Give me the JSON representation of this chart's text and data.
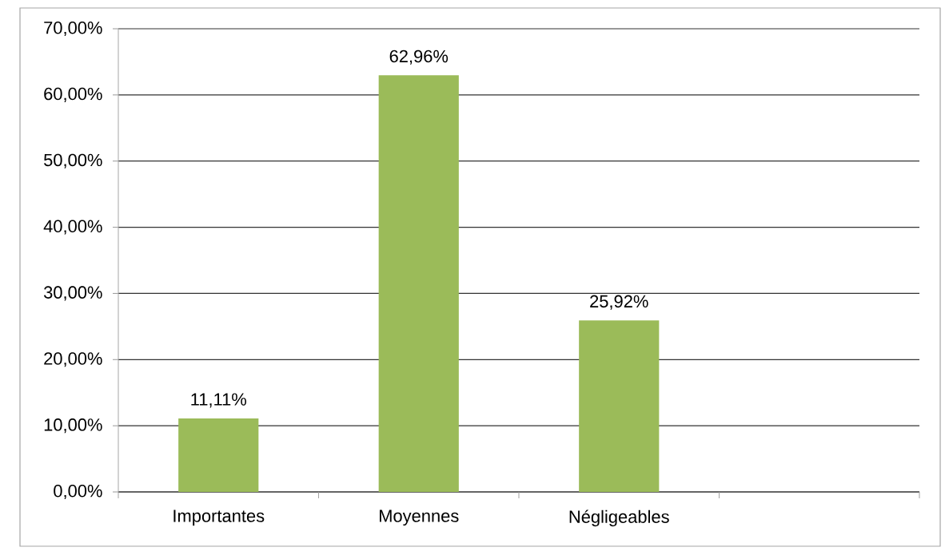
{
  "chart_data": {
    "type": "bar",
    "categories": [
      "Importantes",
      "Moyennes",
      "Négligeables",
      null
    ],
    "values": [
      11.11,
      62.96,
      25.92,
      null
    ],
    "value_labels": [
      "11,11%",
      "62,96%",
      "25,92%",
      null
    ],
    "color": "#9bbb59",
    "ylim": [
      0,
      70
    ],
    "yticks": [
      {
        "value": 0,
        "label": "0,00%"
      },
      {
        "value": 10,
        "label": "10,00%"
      },
      {
        "value": 20,
        "label": "20,00%"
      },
      {
        "value": 30,
        "label": "30,00%"
      },
      {
        "value": 40,
        "label": "40,00%"
      },
      {
        "value": 50,
        "label": "50,00%"
      },
      {
        "value": 60,
        "label": "60,00%"
      },
      {
        "value": 70,
        "label": "70,00%"
      }
    ],
    "grid": "y"
  }
}
